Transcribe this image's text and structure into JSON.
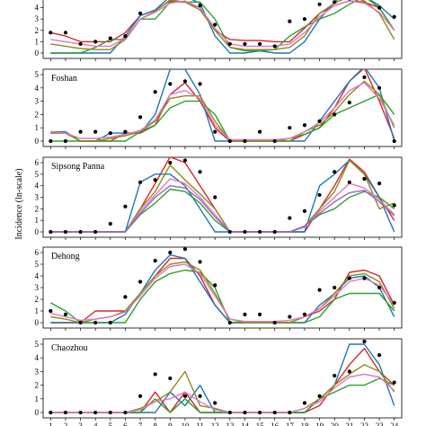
{
  "chart_data": {
    "type": "line",
    "ylabel": "Incidence (ln-scale)",
    "x": [
      1,
      2,
      3,
      4,
      5,
      6,
      7,
      8,
      9,
      10,
      11,
      12,
      13,
      14,
      15,
      16,
      17,
      18,
      19,
      20,
      21,
      22,
      23,
      24
    ],
    "xticks": [
      "1",
      "2",
      "3",
      "4",
      "5",
      "6",
      "7",
      "8",
      "9",
      "10",
      "11",
      "12",
      "13",
      "14",
      "15",
      "16",
      "17",
      "18",
      "19",
      "20",
      "21",
      "22",
      "23",
      "24"
    ],
    "series_colors": [
      "#d62728",
      "#1f77b4",
      "#2ca02c",
      "#8c8c1a",
      "#e377c2",
      "#9467bd"
    ],
    "observed_color": "#000000",
    "panels": [
      {
        "title": "",
        "ylim": [
          0,
          5
        ],
        "yticks": [
          "0",
          "1",
          "2",
          "3",
          "4",
          "5"
        ],
        "observed": [
          1.8,
          1.8,
          0.8,
          1.0,
          1.3,
          1.5,
          3.5,
          5.0,
          5.2,
          5.2,
          4.2,
          2.5,
          0.8,
          0.8,
          0.8,
          0.6,
          2.8,
          3.0,
          4.3,
          4.5,
          4.8,
          5.2,
          4.0,
          3.2
        ],
        "series": [
          {
            "values": [
              1.8,
              1.5,
              1.0,
              1.0,
              1.0,
              1.8,
              3.3,
              3.8,
              4.6,
              4.5,
              4.0,
              2.0,
              1.2,
              1.1,
              1.1,
              1.0,
              1.0,
              2.2,
              3.5,
              4.2,
              4.6,
              4.5,
              4.0,
              2.0
            ]
          },
          {
            "values": [
              0.0,
              0.0,
              0.0,
              0.0,
              0.0,
              1.5,
              3.3,
              3.8,
              5.0,
              5.0,
              4.4,
              1.5,
              0.0,
              0.0,
              0.2,
              0.0,
              0.0,
              1.0,
              3.0,
              4.5,
              5.5,
              5.0,
              4.2,
              3.0
            ]
          },
          {
            "values": [
              0.0,
              0.0,
              0.0,
              0.5,
              1.2,
              1.2,
              3.0,
              3.0,
              4.5,
              4.5,
              4.5,
              3.0,
              0.5,
              0.2,
              0.2,
              0.3,
              1.5,
              2.3,
              3.0,
              3.5,
              4.3,
              5.0,
              4.0,
              2.0
            ]
          },
          {
            "values": [
              0.8,
              0.6,
              0.4,
              0.3,
              0.3,
              1.2,
              3.0,
              3.7,
              4.7,
              4.5,
              3.8,
              2.0,
              0.5,
              0.3,
              0.3,
              0.3,
              0.5,
              1.5,
              3.5,
              4.4,
              5.0,
              4.6,
              3.5,
              1.2
            ]
          },
          {
            "values": [
              1.2,
              1.0,
              0.8,
              0.6,
              0.6,
              1.3,
              3.0,
              3.6,
              4.4,
              4.6,
              4.0,
              2.2,
              0.8,
              0.6,
              0.6,
              0.6,
              0.8,
              1.8,
              3.2,
              4.2,
              4.6,
              4.4,
              3.6,
              2.0
            ]
          }
        ]
      },
      {
        "title": "Foshan",
        "ylim": [
          0,
          5
        ],
        "yticks": [
          "0",
          "1",
          "2",
          "3",
          "4",
          "5"
        ],
        "observed": [
          0.0,
          0.0,
          0.7,
          0.7,
          0.6,
          0.7,
          1.8,
          3.7,
          4.3,
          4.5,
          4.3,
          0.7,
          0.0,
          0.0,
          0.7,
          0.0,
          1.0,
          1.2,
          1.5,
          2.0,
          2.9,
          4.8,
          4.0,
          0.0
        ],
        "series": [
          {
            "values": [
              0.6,
              0.6,
              0.0,
              0.0,
              0.0,
              0.6,
              0.6,
              1.2,
              3.5,
              4.4,
              3.0,
              1.0,
              0.0,
              0.0,
              0.0,
              0.0,
              0.0,
              0.5,
              1.0,
              2.5,
              4.5,
              5.5,
              3.0,
              0.2
            ]
          },
          {
            "values": [
              0.7,
              0.7,
              0.0,
              0.0,
              0.6,
              0.6,
              0.6,
              2.0,
              5.4,
              5.4,
              3.5,
              0.0,
              0.0,
              0.0,
              0.0,
              0.0,
              0.0,
              0.0,
              1.5,
              3.0,
              4.5,
              5.6,
              4.0,
              0.0
            ]
          },
          {
            "values": [
              0.0,
              0.0,
              0.0,
              0.0,
              0.0,
              0.0,
              0.7,
              1.2,
              2.5,
              3.0,
              3.0,
              2.0,
              0.0,
              0.0,
              0.0,
              0.0,
              0.2,
              0.5,
              1.0,
              2.0,
              2.5,
              3.0,
              3.5,
              2.0
            ]
          },
          {
            "values": [
              0.6,
              0.6,
              0.0,
              0.0,
              0.2,
              0.4,
              0.7,
              1.5,
              3.2,
              3.4,
              3.4,
              1.5,
              0.0,
              0.0,
              0.0,
              0.0,
              0.0,
              0.7,
              1.2,
              2.2,
              3.5,
              4.5,
              3.5,
              1.0
            ]
          },
          {
            "values": [
              0.7,
              0.6,
              0.2,
              0.2,
              0.3,
              0.5,
              0.8,
              1.6,
              3.5,
              3.8,
              3.2,
              1.2,
              0.1,
              0.1,
              0.1,
              0.1,
              0.2,
              0.7,
              1.4,
              2.5,
              3.8,
              4.4,
              3.2,
              1.2
            ]
          }
        ]
      },
      {
        "title": "Sipsong Panna",
        "ylim": [
          0,
          6
        ],
        "yticks": [
          "0",
          "1",
          "2",
          "3",
          "4",
          "5",
          "6"
        ],
        "observed": [
          0.0,
          0.0,
          0.0,
          0.0,
          0.7,
          2.2,
          4.3,
          4.5,
          6.0,
          6.2,
          5.2,
          3.0,
          0.0,
          0.0,
          0.0,
          0.0,
          1.2,
          1.8,
          3.2,
          5.2,
          4.3,
          4.6,
          4.2,
          2.3
        ],
        "series": [
          {
            "values": [
              0.0,
              0.0,
              0.0,
              0.0,
              0.0,
              0.0,
              2.0,
              4.2,
              6.5,
              6.0,
              4.0,
              2.0,
              0.0,
              0.0,
              0.0,
              0.0,
              0.0,
              0.0,
              2.0,
              4.0,
              6.3,
              5.2,
              3.0,
              1.0
            ]
          },
          {
            "values": [
              0.0,
              0.0,
              0.0,
              0.0,
              0.0,
              0.0,
              4.3,
              5.0,
              5.0,
              4.0,
              2.0,
              0.0,
              0.0,
              0.0,
              0.0,
              0.0,
              0.0,
              0.0,
              4.0,
              5.0,
              6.2,
              5.0,
              3.0,
              0.0
            ]
          },
          {
            "values": [
              0.0,
              0.0,
              0.0,
              0.0,
              0.0,
              0.0,
              1.5,
              2.5,
              3.7,
              3.5,
              2.5,
              1.0,
              0.0,
              0.0,
              0.0,
              0.0,
              0.0,
              0.5,
              1.5,
              2.0,
              3.0,
              3.5,
              3.0,
              2.0
            ]
          },
          {
            "values": [
              0.0,
              0.0,
              0.0,
              0.0,
              0.0,
              0.0,
              2.0,
              3.5,
              5.8,
              4.5,
              3.3,
              2.0,
              0.0,
              0.0,
              0.0,
              0.0,
              0.0,
              0.5,
              2.0,
              3.5,
              6.2,
              5.0,
              2.0,
              2.5
            ]
          },
          {
            "values": [
              0.0,
              0.0,
              0.0,
              0.0,
              0.0,
              0.0,
              1.8,
              3.2,
              4.6,
              4.2,
              3.0,
              1.5,
              0.0,
              0.0,
              0.0,
              0.0,
              0.0,
              0.4,
              1.8,
              3.0,
              4.2,
              3.8,
              2.8,
              1.5
            ]
          },
          {
            "values": [
              0.0,
              0.0,
              0.0,
              0.0,
              0.0,
              0.0,
              1.6,
              3.0,
              4.0,
              3.8,
              2.8,
              1.3,
              0.0,
              0.0,
              0.0,
              0.0,
              0.0,
              0.5,
              1.6,
              2.6,
              3.4,
              3.6,
              2.6,
              1.4
            ]
          }
        ]
      },
      {
        "title": "Dehong",
        "ylim": [
          0,
          6
        ],
        "yticks": [
          "0",
          "1",
          "2",
          "3",
          "4",
          "5",
          "6"
        ],
        "observed": [
          1.0,
          0.7,
          0.0,
          0.0,
          0.0,
          2.2,
          3.5,
          5.3,
          6.0,
          6.3,
          5.2,
          3.2,
          0.0,
          0.7,
          0.7,
          0.0,
          0.5,
          0.7,
          2.8,
          3.0,
          3.8,
          3.8,
          3.0,
          1.7
        ],
        "series": [
          {
            "values": [
              0.0,
              0.0,
              0.0,
              1.0,
              1.0,
              1.0,
              2.5,
              4.0,
              5.5,
              5.5,
              4.0,
              1.5,
              0.0,
              0.0,
              0.0,
              0.0,
              0.0,
              0.5,
              1.0,
              2.0,
              4.3,
              4.5,
              4.0,
              1.5
            ]
          },
          {
            "values": [
              0.0,
              0.0,
              0.0,
              0.0,
              0.0,
              0.7,
              2.5,
              4.5,
              5.8,
              5.5,
              3.5,
              1.5,
              0.0,
              0.0,
              0.0,
              0.0,
              0.0,
              0.0,
              1.5,
              2.5,
              3.8,
              4.0,
              3.0,
              0.5
            ]
          },
          {
            "values": [
              1.7,
              1.0,
              0.0,
              0.0,
              0.0,
              0.0,
              2.0,
              3.5,
              4.2,
              4.5,
              4.3,
              3.0,
              0.0,
              0.0,
              0.0,
              0.0,
              0.0,
              0.0,
              0.5,
              2.0,
              2.5,
              2.5,
              2.5,
              1.0
            ]
          },
          {
            "values": [
              0.5,
              0.3,
              0.0,
              0.3,
              0.5,
              1.0,
              2.5,
              4.0,
              5.0,
              5.2,
              4.5,
              2.5,
              0.3,
              0.0,
              0.0,
              0.0,
              0.0,
              0.5,
              1.2,
              2.5,
              4.0,
              4.2,
              3.5,
              1.2
            ]
          },
          {
            "values": [
              0.8,
              0.5,
              0.2,
              0.3,
              0.5,
              0.9,
              2.3,
              3.8,
              4.8,
              5.0,
              4.2,
              2.3,
              0.3,
              0.1,
              0.1,
              0.1,
              0.2,
              0.5,
              1.2,
              2.3,
              3.5,
              3.8,
              3.2,
              1.5
            ]
          }
        ]
      },
      {
        "title": "Chaozhou",
        "ylim": [
          0,
          5
        ],
        "yticks": [
          "0",
          "1",
          "2",
          "3",
          "4",
          "5"
        ],
        "observed": [
          0.0,
          0.0,
          0.0,
          0.0,
          0.0,
          0.0,
          1.2,
          2.8,
          2.5,
          1.2,
          1.2,
          0.7,
          0.0,
          0.0,
          0.0,
          0.0,
          0.0,
          0.7,
          1.2,
          2.7,
          3.0,
          5.2,
          4.2,
          2.2
        ],
        "series": [
          {
            "values": [
              0.0,
              0.0,
              0.0,
              0.0,
              0.0,
              0.0,
              0.0,
              1.5,
              0.0,
              1.5,
              0.0,
              0.0,
              0.0,
              0.0,
              0.0,
              0.0,
              0.0,
              0.0,
              0.5,
              2.0,
              3.5,
              4.7,
              3.0,
              2.0
            ]
          },
          {
            "values": [
              0.0,
              0.0,
              0.0,
              0.0,
              0.0,
              0.0,
              0.0,
              0.0,
              1.5,
              0.5,
              2.0,
              0.0,
              0.0,
              0.0,
              0.0,
              0.0,
              0.0,
              0.0,
              1.0,
              2.0,
              5.0,
              5.0,
              3.5,
              0.5
            ]
          },
          {
            "values": [
              0.0,
              0.0,
              0.0,
              0.0,
              0.0,
              0.0,
              0.0,
              1.0,
              0.0,
              1.0,
              0.0,
              0.0,
              0.0,
              0.0,
              0.0,
              0.0,
              0.0,
              0.0,
              1.0,
              1.5,
              2.0,
              2.0,
              2.5,
              2.0
            ]
          },
          {
            "values": [
              0.0,
              0.0,
              0.0,
              0.0,
              0.0,
              0.0,
              0.3,
              0.8,
              1.5,
              3.0,
              0.5,
              0.3,
              0.0,
              0.0,
              0.0,
              0.0,
              0.0,
              0.3,
              1.0,
              2.0,
              2.8,
              3.5,
              3.0,
              1.5
            ]
          },
          {
            "values": [
              0.0,
              0.0,
              0.0,
              0.0,
              0.0,
              0.0,
              0.2,
              0.8,
              1.0,
              1.5,
              0.8,
              0.2,
              0.0,
              0.0,
              0.0,
              0.0,
              0.0,
              0.3,
              0.8,
              1.8,
              2.6,
              2.8,
              2.6,
              1.6
            ]
          }
        ]
      }
    ]
  }
}
